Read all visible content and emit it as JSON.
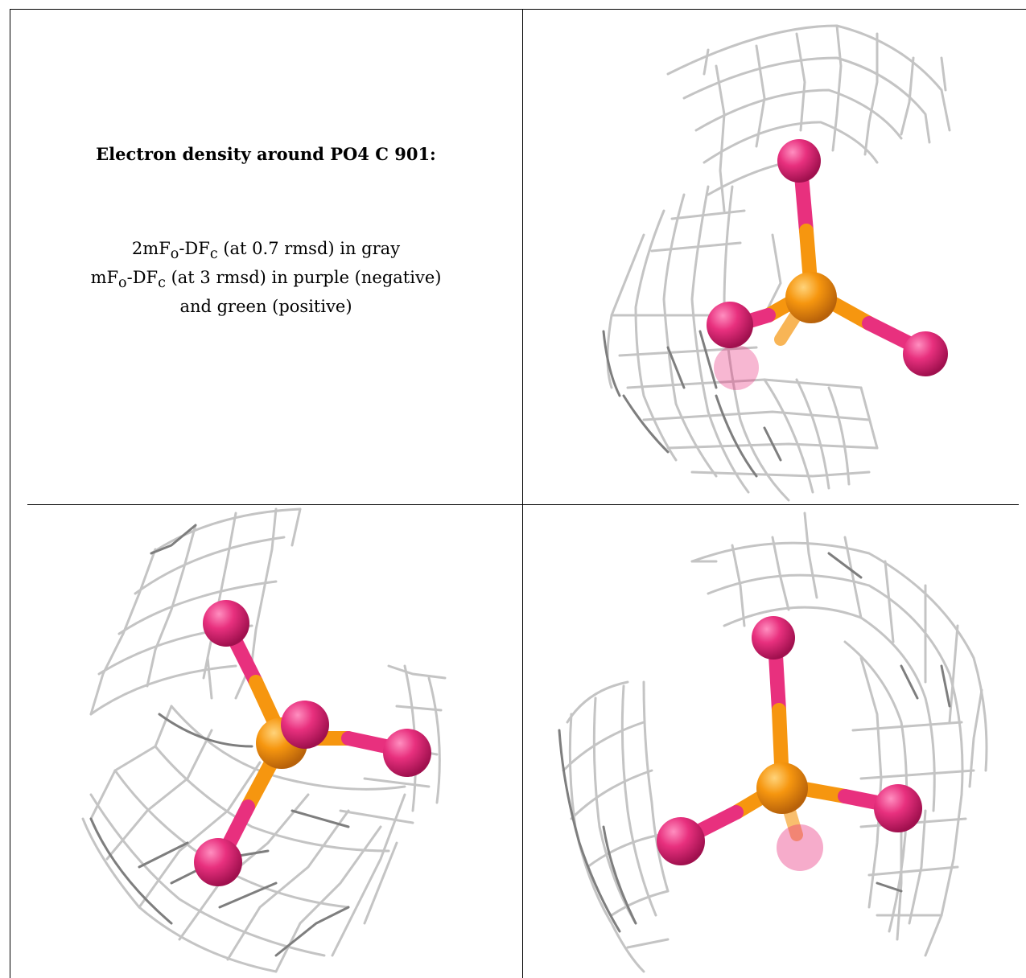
{
  "caption": {
    "title": "Electron density around PO4 C 901:",
    "line1": {
      "t1": "2mF",
      "s1": "o",
      "t2": "-DF",
      "s2": "c",
      "t3": " (at 0.7 rmsd) in gray"
    },
    "line2": {
      "t1": "mF",
      "s1": "o",
      "t2": "-DF",
      "s2": "c",
      "t3": " (at 3 rmsd) in purple (negative)"
    },
    "line3": "and green (positive)"
  },
  "colors": {
    "mesh": "#c4c4c4",
    "mesh_dark": "#7e7e7e",
    "oxygen": "#e8307e",
    "phosphorus": "#f6960f"
  },
  "panels": [
    {
      "name": "view-top-right",
      "icon": "phosphate-molecule-icon"
    },
    {
      "name": "view-bottom-left",
      "icon": "phosphate-molecule-icon"
    },
    {
      "name": "view-bottom-right",
      "icon": "phosphate-molecule-icon"
    }
  ]
}
